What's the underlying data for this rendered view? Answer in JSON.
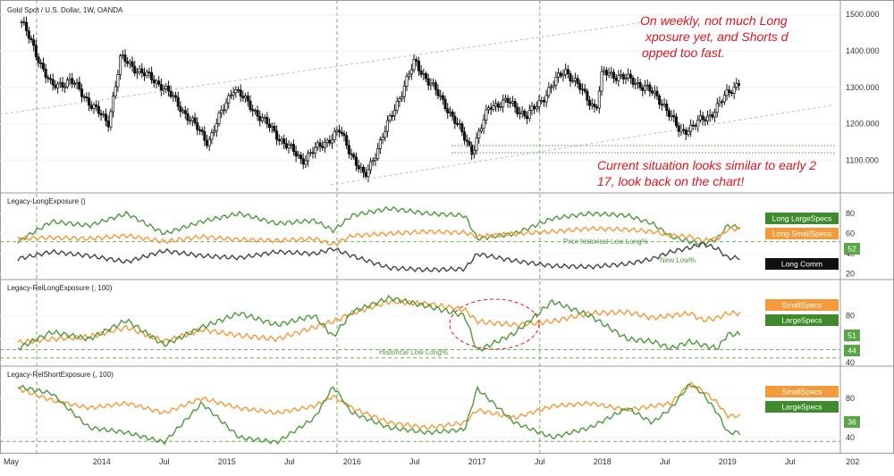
{
  "chart_data": {
    "type": "candlestick_with_indicator_panes",
    "title": "Gold Spot / U.S. Dollar, 1W, OANDA",
    "x_labels": [
      "May",
      "2014",
      "Jul",
      "2015",
      "Jul",
      "2016",
      "Jul",
      "2017",
      "Jul",
      "2018",
      "Jul",
      "2019",
      "Jul",
      "202"
    ],
    "price": {
      "ylim": [
        1020,
        1530
      ],
      "ticks": [
        "1100.000",
        "1200.000",
        "1300.000",
        "1400.000",
        "1500.000"
      ],
      "tick_values": [
        1100,
        1200,
        1300,
        1400,
        1500
      ],
      "approx_weekly_close": [
        1470,
        1410,
        1330,
        1290,
        1240,
        1280,
        1320,
        1390,
        1330,
        1310,
        1260,
        1230,
        1200,
        1240,
        1290,
        1340,
        1300,
        1330,
        1320,
        1290,
        1270,
        1250,
        1220,
        1200,
        1210,
        1240,
        1290,
        1330,
        1310,
        1300,
        1280,
        1220,
        1200,
        1180,
        1160,
        1150,
        1170,
        1190,
        1200,
        1180,
        1150,
        1110,
        1090,
        1120,
        1140,
        1120,
        1080,
        1070,
        1060,
        1080,
        1110,
        1150,
        1200,
        1250,
        1240,
        1280,
        1300,
        1320,
        1340,
        1360,
        1330,
        1310,
        1270,
        1230,
        1190,
        1160,
        1140,
        1130,
        1150,
        1180,
        1200,
        1210,
        1230,
        1250,
        1240,
        1260,
        1260,
        1280,
        1270,
        1280,
        1300,
        1320,
        1320,
        1330,
        1340,
        1320,
        1300,
        1270,
        1250,
        1230,
        1210,
        1200,
        1190,
        1180,
        1200,
        1220,
        1240,
        1260,
        1280,
        1300,
        1310
      ],
      "pivots_date": [
        2013.36,
        2013.6,
        2013.75,
        2014.05,
        2014.15,
        2014.5,
        2014.85,
        2015.05,
        2015.45,
        2015.6,
        2015.9,
        2016.1,
        2016.5,
        2016.75,
        2016.96,
        2017.1,
        2017.25,
        2017.4,
        2017.5,
        2017.7,
        2017.95,
        2018.0,
        2018.15,
        2018.35,
        2018.5,
        2018.62,
        2018.85,
        2019.02,
        2019.1
      ],
      "pivots_price": [
        1480,
        1300,
        1320,
        1200,
        1380,
        1300,
        1150,
        1300,
        1150,
        1100,
        1180,
        1050,
        1370,
        1250,
        1125,
        1250,
        1260,
        1220,
        1260,
        1350,
        1240,
        1340,
        1330,
        1300,
        1250,
        1175,
        1220,
        1290,
        1320
      ],
      "annotation_1": "On weekly, not much Long exposure yet, and Shorts dropped too fast.",
      "annotation_2": "Current situation looks similar to early 2017, look back on the chart!"
    },
    "indicators": [
      {
        "title": "Legacy-LongExposure ()",
        "ylim": [
          18,
          88
        ],
        "ticks": [
          "80",
          "60",
          "40",
          "20"
        ],
        "tick_values": [
          80,
          60,
          40,
          20
        ],
        "series": [
          {
            "name": "Long LargeSpecs",
            "color": "#4f9a3e",
            "dates": [
              2013.33,
              2013.6,
              2013.9,
              2014.2,
              2014.5,
              2014.8,
              2015.1,
              2015.4,
              2015.7,
              2015.85,
              2016.0,
              2016.3,
              2016.6,
              2016.9,
              2017.0,
              2017.3,
              2017.6,
              2017.9,
              2018.2,
              2018.4,
              2018.55,
              2018.7,
              2018.8,
              2018.92,
              2019.0,
              2019.1
            ],
            "values": [
              52,
              72,
              68,
              80,
              60,
              72,
              80,
              70,
              73,
              63,
              78,
              85,
              80,
              78,
              55,
              60,
              75,
              80,
              78,
              70,
              57,
              52,
              50,
              55,
              68,
              66
            ]
          },
          {
            "name": "Long SmallSpecs",
            "color": "#f39a3a",
            "dates": [
              2013.33,
              2013.6,
              2013.9,
              2014.2,
              2014.5,
              2014.8,
              2015.1,
              2015.4,
              2015.7,
              2015.85,
              2016.0,
              2016.3,
              2016.6,
              2016.9,
              2017.0,
              2017.3,
              2017.6,
              2017.9,
              2018.2,
              2018.4,
              2018.55,
              2018.7,
              2018.8,
              2018.92,
              2019.0,
              2019.1
            ],
            "values": [
              55,
              56,
              55,
              58,
              52,
              57,
              54,
              53,
              55,
              49,
              58,
              60,
              62,
              61,
              57,
              60,
              62,
              65,
              64,
              62,
              58,
              57,
              53,
              55,
              64,
              65
            ]
          },
          {
            "name": "Long Comm",
            "color": "#444444",
            "dates": [
              2013.33,
              2013.6,
              2013.9,
              2014.2,
              2014.5,
              2014.8,
              2015.1,
              2015.4,
              2015.7,
              2015.85,
              2016.0,
              2016.3,
              2016.6,
              2016.9,
              2017.0,
              2017.3,
              2017.6,
              2017.9,
              2018.2,
              2018.4,
              2018.55,
              2018.7,
              2018.8,
              2018.92,
              2019.0,
              2019.1
            ],
            "values": [
              35,
              42,
              38,
              32,
              43,
              38,
              36,
              42,
              40,
              45,
              38,
              26,
              24,
              25,
              40,
              33,
              28,
              27,
              30,
              35,
              42,
              46,
              50,
              45,
              36,
              36
            ]
          }
        ],
        "reference_line": 52,
        "labels": [
          "Prior historical Low Long%",
          "New Low%"
        ],
        "badges": [
          "Long LargeSpecs",
          "Long SmallSpecs",
          "52",
          "Long Comm"
        ]
      },
      {
        "title": "Legacy-RelLongExposure (, 100)",
        "ylim": [
          40,
          100
        ],
        "ticks": [
          "80",
          "60",
          "40"
        ],
        "tick_values": [
          80,
          60,
          40
        ],
        "series": [
          {
            "name": "SmallSpecs",
            "color": "#f39a3a",
            "dates": [
              2013.33,
              2013.6,
              2013.9,
              2014.2,
              2014.5,
              2014.8,
              2015.1,
              2015.4,
              2015.7,
              2015.85,
              2016.0,
              2016.3,
              2016.6,
              2016.9,
              2017.0,
              2017.3,
              2017.6,
              2017.9,
              2018.2,
              2018.4,
              2018.55,
              2018.7,
              2018.8,
              2018.92,
              2019.0,
              2019.1
            ],
            "values": [
              57,
              60,
              62,
              70,
              58,
              68,
              63,
              60,
              70,
              75,
              82,
              92,
              90,
              85,
              75,
              72,
              75,
              82,
              83,
              78,
              80,
              82,
              76,
              78,
              82,
              82
            ]
          },
          {
            "name": "LargeSpecs",
            "color": "#4f9a3e",
            "dates": [
              2013.33,
              2013.6,
              2013.9,
              2014.2,
              2014.5,
              2014.8,
              2015.1,
              2015.4,
              2015.7,
              2015.85,
              2016.0,
              2016.3,
              2016.6,
              2016.9,
              2017.0,
              2017.3,
              2017.6,
              2017.9,
              2018.2,
              2018.4,
              2018.55,
              2018.7,
              2018.8,
              2018.92,
              2019.0,
              2019.1
            ],
            "values": [
              52,
              66,
              60,
              76,
              55,
              70,
              82,
              72,
              80,
              62,
              83,
              95,
              88,
              80,
              50,
              65,
              92,
              80,
              60,
              58,
              52,
              58,
              55,
              52,
              64,
              64
            ]
          }
        ],
        "reference_lines": [
          51,
          44
        ],
        "ellipse_label": "Historical Low Long%",
        "badges": [
          "SmallSpecs",
          "LargeSpecs",
          "51",
          "44"
        ]
      },
      {
        "title": "Legacy-RelShortExposure (, 100)",
        "ylim": [
          28,
          100
        ],
        "ticks": [
          "80",
          "40"
        ],
        "tick_values": [
          80,
          40
        ],
        "series": [
          {
            "name": "SmallSpecs",
            "color": "#f39a3a",
            "dates": [
              2013.33,
              2013.6,
              2013.9,
              2014.2,
              2014.5,
              2014.8,
              2015.1,
              2015.4,
              2015.7,
              2015.85,
              2016.0,
              2016.3,
              2016.6,
              2016.9,
              2017.0,
              2017.3,
              2017.6,
              2017.9,
              2018.2,
              2018.4,
              2018.55,
              2018.7,
              2018.8,
              2018.92,
              2019.0,
              2019.1
            ],
            "values": [
              90,
              78,
              70,
              75,
              65,
              80,
              70,
              65,
              72,
              82,
              70,
              55,
              50,
              55,
              68,
              60,
              72,
              75,
              68,
              72,
              75,
              95,
              88,
              75,
              62,
              62
            ]
          },
          {
            "name": "LargeSpecs",
            "color": "#4f9a3e",
            "dates": [
              2013.33,
              2013.6,
              2013.9,
              2014.2,
              2014.5,
              2014.8,
              2015.1,
              2015.4,
              2015.7,
              2015.85,
              2016.0,
              2016.3,
              2016.6,
              2016.9,
              2017.0,
              2017.3,
              2017.6,
              2017.9,
              2018.2,
              2018.4,
              2018.55,
              2018.7,
              2018.8,
              2018.92,
              2019.0,
              2019.1
            ],
            "values": [
              92,
              85,
              50,
              45,
              35,
              75,
              40,
              35,
              60,
              92,
              65,
              50,
              45,
              48,
              90,
              55,
              40,
              50,
              70,
              55,
              70,
              95,
              85,
              65,
              45,
              45
            ]
          }
        ],
        "reference_line": 36,
        "badges": [
          "SmallSpecs",
          "LargeSpecs",
          "36"
        ]
      }
    ],
    "vertical_markers": [
      2013.48,
      2015.88,
      2017.5
    ],
    "colors": {
      "large_specs": "#4f9a3e",
      "small_specs": "#f39a3a",
      "comm": "#111111",
      "annotation": "#e0141e"
    }
  }
}
